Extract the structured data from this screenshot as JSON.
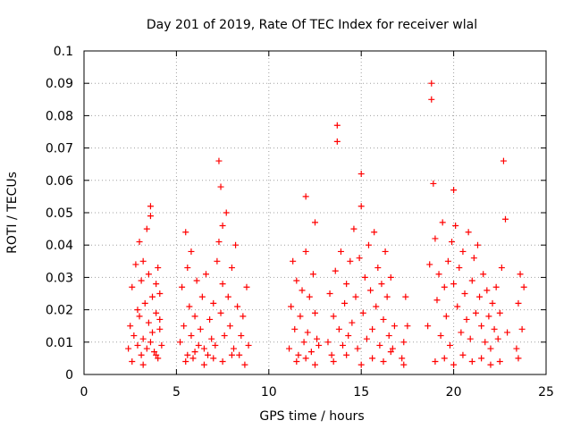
{
  "chart_data": {
    "type": "scatter",
    "title": "Day 201 of 2019, Rate Of TEC Index for receiver wlal",
    "xlabel": "GPS time / hours",
    "ylabel": "ROTI / TECUs",
    "xlim": [
      0,
      25
    ],
    "ylim": [
      0,
      0.1
    ],
    "x_ticks": [
      "0",
      "5",
      "10",
      "15",
      "20",
      "25"
    ],
    "y_ticks": [
      "0",
      "0.01",
      "0.02",
      "0.03",
      "0.04",
      "0.05",
      "0.06",
      "0.07",
      "0.08",
      "0.09",
      "0.1"
    ],
    "grid": true,
    "marker": "+",
    "color": "#ff0000",
    "series": [
      {
        "name": "ROTI",
        "x": [
          2.4,
          2.5,
          2.6,
          2.7,
          2.8,
          2.9,
          3.0,
          3.0,
          3.1,
          3.1,
          3.2,
          3.2,
          3.3,
          3.4,
          3.4,
          3.5,
          3.5,
          3.6,
          3.6,
          3.7,
          3.7,
          3.8,
          3.9,
          3.9,
          4.0,
          4.0,
          4.1,
          4.1,
          4.2,
          2.6,
          2.9,
          3.2,
          3.6,
          3.9,
          4.1,
          5.2,
          5.3,
          5.4,
          5.5,
          5.6,
          5.6,
          5.7,
          5.8,
          5.8,
          5.9,
          6.0,
          6.1,
          6.2,
          6.3,
          6.4,
          6.5,
          6.6,
          6.7,
          6.8,
          6.9,
          7.0,
          7.1,
          7.2,
          7.3,
          7.3,
          7.4,
          7.4,
          7.5,
          7.5,
          7.6,
          7.7,
          7.8,
          7.9,
          8.0,
          8.1,
          8.2,
          8.3,
          8.4,
          8.5,
          8.6,
          8.8,
          8.9,
          5.5,
          6.0,
          6.5,
          7.0,
          7.5,
          8.0,
          8.7,
          11.1,
          11.2,
          11.3,
          11.4,
          11.5,
          11.6,
          11.7,
          11.8,
          11.9,
          12.0,
          12.0,
          12.1,
          12.2,
          12.3,
          12.4,
          12.5,
          12.5,
          12.6,
          12.7,
          11.5,
          12.0,
          12.5,
          13.2,
          13.3,
          13.4,
          13.5,
          13.6,
          13.7,
          13.7,
          13.8,
          13.9,
          14.0,
          14.1,
          14.2,
          14.3,
          14.4,
          14.5,
          14.6,
          14.7,
          14.8,
          14.9,
          15.0,
          15.0,
          15.1,
          15.2,
          15.3,
          15.4,
          15.5,
          15.6,
          15.7,
          15.8,
          15.9,
          16.0,
          16.1,
          16.2,
          16.3,
          16.4,
          16.5,
          16.6,
          16.7,
          16.8,
          13.5,
          14.2,
          15.0,
          15.6,
          16.2,
          16.6,
          17.2,
          17.3,
          17.4,
          17.5,
          17.3,
          18.6,
          18.7,
          18.8,
          18.8,
          18.9,
          19.0,
          19.1,
          19.2,
          19.3,
          19.4,
          19.5,
          19.6,
          19.7,
          19.8,
          19.9,
          20.0,
          20.0,
          20.1,
          20.2,
          20.3,
          20.4,
          20.5,
          20.6,
          20.7,
          20.8,
          20.9,
          21.0,
          21.1,
          21.2,
          21.3,
          21.4,
          21.5,
          21.6,
          21.7,
          21.8,
          21.9,
          22.0,
          22.1,
          22.2,
          22.3,
          22.4,
          22.5,
          22.6,
          22.7,
          22.8,
          22.9,
          19.0,
          19.5,
          20.0,
          20.5,
          21.0,
          21.5,
          22.0,
          22.5,
          23.4,
          23.5,
          23.6,
          23.7,
          23.8,
          23.5
        ],
        "y": [
          0.008,
          0.015,
          0.027,
          0.012,
          0.034,
          0.009,
          0.041,
          0.018,
          0.006,
          0.029,
          0.011,
          0.035,
          0.022,
          0.008,
          0.045,
          0.016,
          0.031,
          0.01,
          0.052,
          0.024,
          0.013,
          0.007,
          0.028,
          0.019,
          0.033,
          0.005,
          0.014,
          0.025,
          0.009,
          0.004,
          0.02,
          0.003,
          0.049,
          0.006,
          0.017,
          0.01,
          0.027,
          0.015,
          0.044,
          0.006,
          0.033,
          0.021,
          0.012,
          0.038,
          0.005,
          0.018,
          0.029,
          0.009,
          0.014,
          0.024,
          0.008,
          0.031,
          0.006,
          0.017,
          0.011,
          0.022,
          0.009,
          0.035,
          0.066,
          0.041,
          0.019,
          0.058,
          0.028,
          0.046,
          0.012,
          0.05,
          0.024,
          0.015,
          0.033,
          0.008,
          0.04,
          0.021,
          0.006,
          0.012,
          0.018,
          0.027,
          0.009,
          0.004,
          0.007,
          0.003,
          0.005,
          0.004,
          0.006,
          0.003,
          0.008,
          0.021,
          0.035,
          0.014,
          0.029,
          0.006,
          0.018,
          0.026,
          0.01,
          0.038,
          0.055,
          0.013,
          0.024,
          0.007,
          0.031,
          0.047,
          0.019,
          0.011,
          0.009,
          0.004,
          0.005,
          0.003,
          0.01,
          0.025,
          0.006,
          0.018,
          0.032,
          0.077,
          0.072,
          0.014,
          0.038,
          0.009,
          0.022,
          0.028,
          0.012,
          0.035,
          0.016,
          0.045,
          0.024,
          0.008,
          0.036,
          0.062,
          0.052,
          0.019,
          0.03,
          0.011,
          0.04,
          0.026,
          0.014,
          0.044,
          0.021,
          0.033,
          0.009,
          0.028,
          0.017,
          0.038,
          0.024,
          0.012,
          0.03,
          0.008,
          0.015,
          0.004,
          0.006,
          0.003,
          0.005,
          0.004,
          0.007,
          0.005,
          0.01,
          0.024,
          0.015,
          0.003,
          0.015,
          0.034,
          0.09,
          0.085,
          0.059,
          0.042,
          0.023,
          0.031,
          0.012,
          0.047,
          0.027,
          0.018,
          0.035,
          0.009,
          0.041,
          0.057,
          0.028,
          0.046,
          0.021,
          0.033,
          0.013,
          0.038,
          0.025,
          0.017,
          0.044,
          0.011,
          0.029,
          0.036,
          0.019,
          0.04,
          0.024,
          0.015,
          0.031,
          0.01,
          0.026,
          0.018,
          0.008,
          0.022,
          0.014,
          0.027,
          0.011,
          0.019,
          0.033,
          0.066,
          0.048,
          0.013,
          0.004,
          0.005,
          0.003,
          0.006,
          0.004,
          0.005,
          0.003,
          0.004,
          0.008,
          0.022,
          0.031,
          0.014,
          0.027,
          0.005
        ]
      }
    ]
  }
}
